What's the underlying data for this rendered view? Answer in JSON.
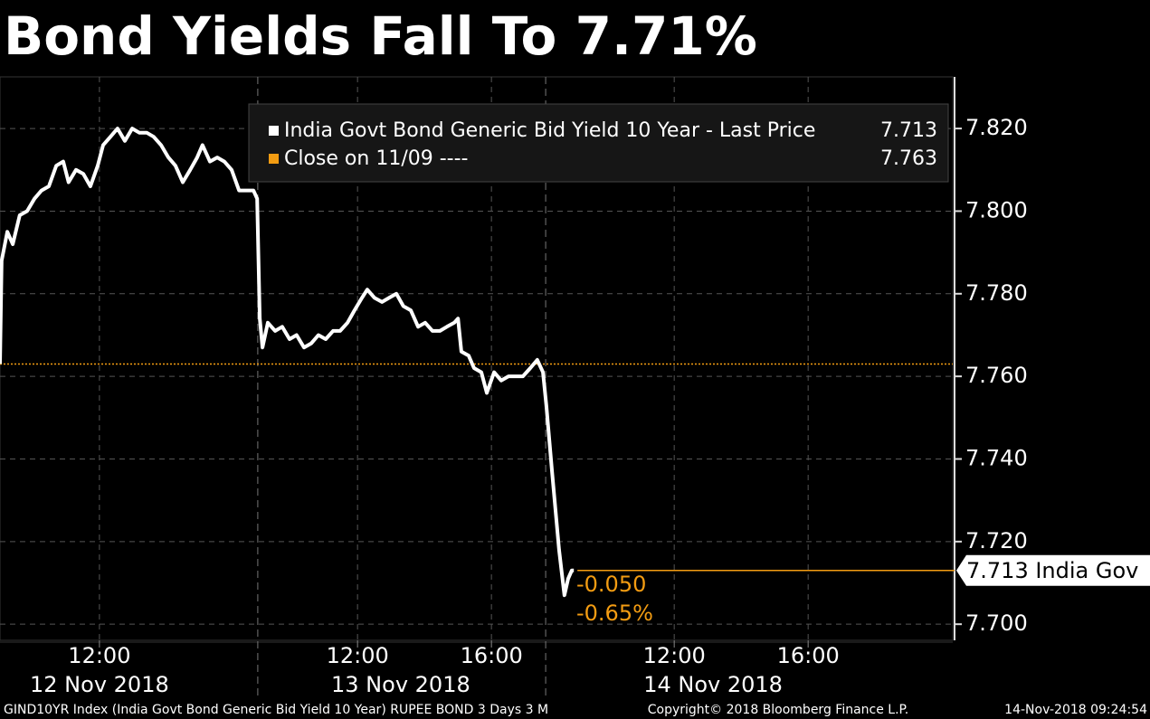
{
  "chart_data": {
    "type": "line",
    "title": "Bond Yields Fall To 7.71%",
    "x": [
      0,
      0.05,
      0.22,
      0.38,
      0.59,
      0.81,
      1.03,
      1.24,
      1.46,
      1.68,
      1.89,
      2.05,
      2.27,
      2.49,
      2.7,
      2.92,
      3.08,
      3.3,
      3.51,
      3.73,
      3.95,
      4.16,
      4.38,
      4.59,
      4.81,
      5.03,
      5.24,
      5.46,
      5.68,
      5.89,
      6.05,
      6.27,
      6.49,
      6.7,
      6.92,
      7.14,
      7.35,
      7.57,
      7.68,
      7.76,
      7.84,
      8.0,
      8.22,
      8.43,
      8.65,
      8.86,
      9.08,
      9.3,
      9.51,
      9.73,
      9.95,
      10.16,
      10.38,
      10.59,
      10.81,
      10.97,
      11.19,
      11.41,
      11.62,
      11.84,
      12.05,
      12.27,
      12.49,
      12.7,
      12.92,
      13.14,
      13.35,
      13.57,
      13.68,
      13.78,
      14.0,
      14.16,
      14.38,
      14.54,
      14.76,
      14.97,
      15.19,
      15.41,
      15.62,
      15.84,
      16.05,
      16.22,
      16.32,
      16.49,
      16.7,
      16.86,
      16.97,
      17.08,
      17.14
    ],
    "series": [
      {
        "name": "India Govt Bond Generic Bid Yield 10 Year - Last Price",
        "color": "#ffffff",
        "last_value": 7.713,
        "values": [
          7.763,
          7.788,
          7.795,
          7.792,
          7.799,
          7.8,
          7.803,
          7.805,
          7.806,
          7.811,
          7.812,
          7.807,
          7.81,
          7.809,
          7.806,
          7.811,
          7.816,
          7.818,
          7.82,
          7.817,
          7.82,
          7.819,
          7.819,
          7.818,
          7.816,
          7.813,
          7.811,
          7.807,
          7.81,
          7.813,
          7.816,
          7.812,
          7.813,
          7.812,
          7.81,
          7.805,
          7.805,
          7.805,
          7.803,
          7.774,
          7.767,
          7.773,
          7.771,
          7.772,
          7.769,
          7.77,
          7.767,
          7.768,
          7.77,
          7.769,
          7.771,
          7.771,
          7.773,
          7.776,
          7.779,
          7.781,
          7.779,
          7.778,
          7.779,
          7.78,
          7.777,
          7.776,
          7.772,
          7.773,
          7.771,
          7.771,
          7.772,
          7.773,
          7.774,
          7.766,
          7.765,
          7.762,
          7.761,
          7.756,
          7.761,
          7.759,
          7.76,
          7.76,
          7.76,
          7.762,
          7.764,
          7.761,
          7.753,
          7.737,
          7.718,
          7.707,
          7.711,
          7.713,
          7.713
        ]
      }
    ],
    "reference": {
      "name": "Close on 11/09 ----",
      "value": 7.763,
      "color": "#f39c12"
    },
    "price_tag": "7.713 India Gov",
    "annotations": [
      "-0.050",
      "-0.65%"
    ],
    "xlim": [
      0,
      28.46
    ],
    "xticks": [
      {
        "value": 2.97,
        "label": "12:00"
      },
      {
        "value": 10.68,
        "label": "12:00"
      },
      {
        "value": 14.68,
        "label": "16:00"
      },
      {
        "value": 20.14,
        "label": "12:00"
      },
      {
        "value": 24.14,
        "label": "16:00"
      }
    ],
    "date_labels": [
      {
        "value": 2.97,
        "label": "12 Nov 2018"
      },
      {
        "value": 11.97,
        "label": "13 Nov 2018"
      },
      {
        "value": 21.3,
        "label": "14 Nov 2018"
      }
    ],
    "day_breaks": [
      7.7,
      16.3
    ],
    "ylim": [
      7.6961,
      7.8325
    ],
    "yticks": [
      {
        "value": 7.7,
        "label": "7.700"
      },
      {
        "value": 7.72,
        "label": "7.720"
      },
      {
        "value": 7.74,
        "label": "7.740"
      },
      {
        "value": 7.76,
        "label": "7.760"
      },
      {
        "value": 7.78,
        "label": "7.780"
      },
      {
        "value": 7.8,
        "label": "7.800"
      },
      {
        "value": 7.82,
        "label": "7.820"
      }
    ],
    "grid": true
  },
  "footer": {
    "left": "GIND10YR Index (India Govt Bond Generic Bid Yield 10 Year) RUPEE BOND 3 Days 3 M",
    "center": "Copyright© 2018 Bloomberg Finance L.P.",
    "right": "14-Nov-2018 09:24:54"
  }
}
